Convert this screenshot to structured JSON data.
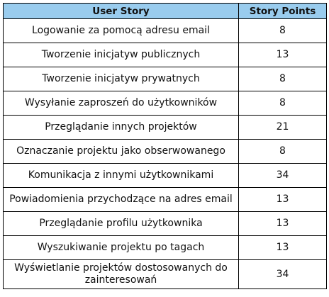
{
  "table": {
    "headers": {
      "story": "User Story",
      "points": "Story Points"
    },
    "rows": [
      {
        "story": "Logowanie za pomocą adresu email",
        "points": "8"
      },
      {
        "story": "Tworzenie inicjatyw publicznych",
        "points": "13"
      },
      {
        "story": "Tworzenie inicjatyw prywatnych",
        "points": "8"
      },
      {
        "story": "Wysyłanie zaproszeń do użytkowników",
        "points": "8"
      },
      {
        "story": "Przeglądanie innych projektów",
        "points": "21"
      },
      {
        "story": "Oznaczanie projektu jako obserwowanego",
        "points": "8"
      },
      {
        "story": "Komunikacja z innymi użytkownikami",
        "points": "34"
      },
      {
        "story": "Powiadomienia przychodzące na adres email",
        "points": "13"
      },
      {
        "story": "Przeglądanie profilu użytkownika",
        "points": "13"
      },
      {
        "story": "Wyszukiwanie projektu po tagach",
        "points": "13"
      },
      {
        "story": "Wyświetlanie projektów dostosowanych do zainteresowań",
        "points": "34"
      }
    ]
  },
  "colors": {
    "header_background": "#99ccee",
    "border": "#000000"
  }
}
